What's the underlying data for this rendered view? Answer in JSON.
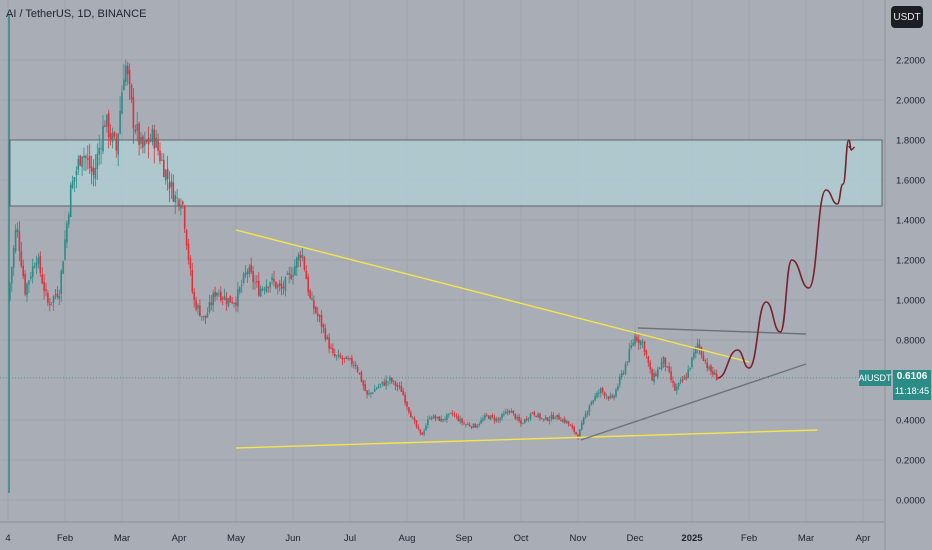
{
  "header": {
    "title": "AI / TetherUS, 1D, BINANCE"
  },
  "toolbar": {
    "currency_label": "USDT"
  },
  "last_price": {
    "symbol": "AIUSDT",
    "price": "0.6106",
    "countdown": "11:18:45",
    "value": 0.6106,
    "color": "#2b8c87"
  },
  "colors": {
    "background": "#a9adb6",
    "grid": "#9ea2ab",
    "up": "#2b8c87",
    "down": "#e0303a",
    "zone_fill": "#b0ccd2",
    "zone_border": "#4a4e58",
    "yellow": "#f5e54a",
    "gray_line": "#6f727a",
    "projection": "#7a1f2c"
  },
  "chart_data": {
    "type": "candlestick",
    "title": "AI / TetherUS, 1D, BINANCE",
    "ylim": [
      -0.08,
      2.4
    ],
    "y_ticks": [
      {
        "v": 2.2,
        "label": "2.2000"
      },
      {
        "v": 2.0,
        "label": "2.0000"
      },
      {
        "v": 1.8,
        "label": "1.8000"
      },
      {
        "v": 1.6,
        "label": "1.6000"
      },
      {
        "v": 1.4,
        "label": "1.4000"
      },
      {
        "v": 1.2,
        "label": "1.2000"
      },
      {
        "v": 1.0,
        "label": "1.0000"
      },
      {
        "v": 0.8,
        "label": "0.8000"
      },
      {
        "v": 0.4,
        "label": "0.4000"
      },
      {
        "v": 0.2,
        "label": "0.2000"
      },
      {
        "v": 0.0,
        "label": "0.0000"
      }
    ],
    "x_ticks": [
      {
        "label": "4",
        "month": 0.0
      },
      {
        "label": "Feb",
        "month": 1.0
      },
      {
        "label": "Mar",
        "month": 2.0
      },
      {
        "label": "Apr",
        "month": 3.0
      },
      {
        "label": "May",
        "month": 4.0
      },
      {
        "label": "Jun",
        "month": 5.0
      },
      {
        "label": "Jul",
        "month": 6.0
      },
      {
        "label": "Aug",
        "month": 7.0
      },
      {
        "label": "Sep",
        "month": 8.0
      },
      {
        "label": "Oct",
        "month": 9.0
      },
      {
        "label": "Nov",
        "month": 10.0
      },
      {
        "label": "Dec",
        "month": 11.0
      },
      {
        "label": "2025",
        "month": 12.0,
        "bold": true
      },
      {
        "label": "Feb",
        "month": 13.0
      },
      {
        "label": "Mar",
        "month": 14.0
      },
      {
        "label": "Apr",
        "month": 15.0
      }
    ],
    "price_path": [
      [
        0.0,
        1.0
      ],
      [
        0.15,
        1.38
      ],
      [
        0.3,
        1.05
      ],
      [
        0.5,
        1.22
      ],
      [
        0.7,
        0.98
      ],
      [
        0.9,
        1.05
      ],
      [
        1.1,
        1.55
      ],
      [
        1.3,
        1.75
      ],
      [
        1.5,
        1.62
      ],
      [
        1.7,
        1.9
      ],
      [
        1.9,
        1.75
      ],
      [
        2.05,
        2.2
      ],
      [
        2.2,
        1.9
      ],
      [
        2.35,
        1.75
      ],
      [
        2.55,
        1.82
      ],
      [
        2.75,
        1.65
      ],
      [
        2.95,
        1.5
      ],
      [
        3.05,
        1.52
      ],
      [
        3.25,
        1.0
      ],
      [
        3.45,
        0.9
      ],
      [
        3.65,
        1.05
      ],
      [
        3.85,
        1.0
      ],
      [
        4.0,
        1.0
      ],
      [
        4.2,
        1.15
      ],
      [
        4.4,
        1.05
      ],
      [
        4.6,
        1.1
      ],
      [
        4.8,
        1.05
      ],
      [
        5.0,
        1.15
      ],
      [
        5.15,
        1.25
      ],
      [
        5.3,
        1.0
      ],
      [
        5.5,
        0.88
      ],
      [
        5.7,
        0.72
      ],
      [
        5.9,
        0.7
      ],
      [
        6.1,
        0.68
      ],
      [
        6.3,
        0.52
      ],
      [
        6.5,
        0.57
      ],
      [
        6.7,
        0.6
      ],
      [
        6.9,
        0.55
      ],
      [
        7.1,
        0.4
      ],
      [
        7.25,
        0.32
      ],
      [
        7.4,
        0.42
      ],
      [
        7.6,
        0.4
      ],
      [
        7.8,
        0.43
      ],
      [
        8.0,
        0.38
      ],
      [
        8.2,
        0.37
      ],
      [
        8.4,
        0.42
      ],
      [
        8.6,
        0.4
      ],
      [
        8.8,
        0.45
      ],
      [
        9.0,
        0.38
      ],
      [
        9.2,
        0.44
      ],
      [
        9.4,
        0.4
      ],
      [
        9.6,
        0.42
      ],
      [
        9.8,
        0.39
      ],
      [
        10.0,
        0.32
      ],
      [
        10.2,
        0.48
      ],
      [
        10.4,
        0.55
      ],
      [
        10.6,
        0.5
      ],
      [
        10.8,
        0.65
      ],
      [
        11.0,
        0.82
      ],
      [
        11.15,
        0.78
      ],
      [
        11.3,
        0.6
      ],
      [
        11.5,
        0.7
      ],
      [
        11.7,
        0.55
      ],
      [
        11.9,
        0.62
      ],
      [
        12.1,
        0.78
      ],
      [
        12.3,
        0.65
      ],
      [
        12.45,
        0.61
      ]
    ],
    "zone": {
      "top": 1.8,
      "bottom": 1.47
    },
    "trendlines": [
      {
        "name": "upper-resistance",
        "color": "yellow",
        "from": [
          4.0,
          1.35
        ],
        "to": [
          13.0,
          0.69
        ]
      },
      {
        "name": "lower-support",
        "color": "yellow",
        "from": [
          4.0,
          0.26
        ],
        "to": [
          14.2,
          0.35
        ]
      },
      {
        "name": "triangle-top",
        "color": "gray",
        "from": [
          11.05,
          0.86
        ],
        "to": [
          14.0,
          0.83
        ]
      },
      {
        "name": "triangle-bottom",
        "color": "gray",
        "from": [
          10.05,
          0.3
        ],
        "to": [
          14.0,
          0.68
        ]
      }
    ],
    "projection": [
      [
        12.45,
        0.61
      ],
      [
        12.8,
        0.75
      ],
      [
        13.0,
        0.66
      ],
      [
        13.3,
        0.99
      ],
      [
        13.55,
        0.84
      ],
      [
        13.75,
        1.2
      ],
      [
        14.05,
        1.06
      ],
      [
        14.35,
        1.55
      ],
      [
        14.55,
        1.48
      ],
      [
        14.65,
        1.58
      ],
      [
        14.75,
        1.8
      ],
      [
        14.8,
        1.75
      ]
    ]
  }
}
